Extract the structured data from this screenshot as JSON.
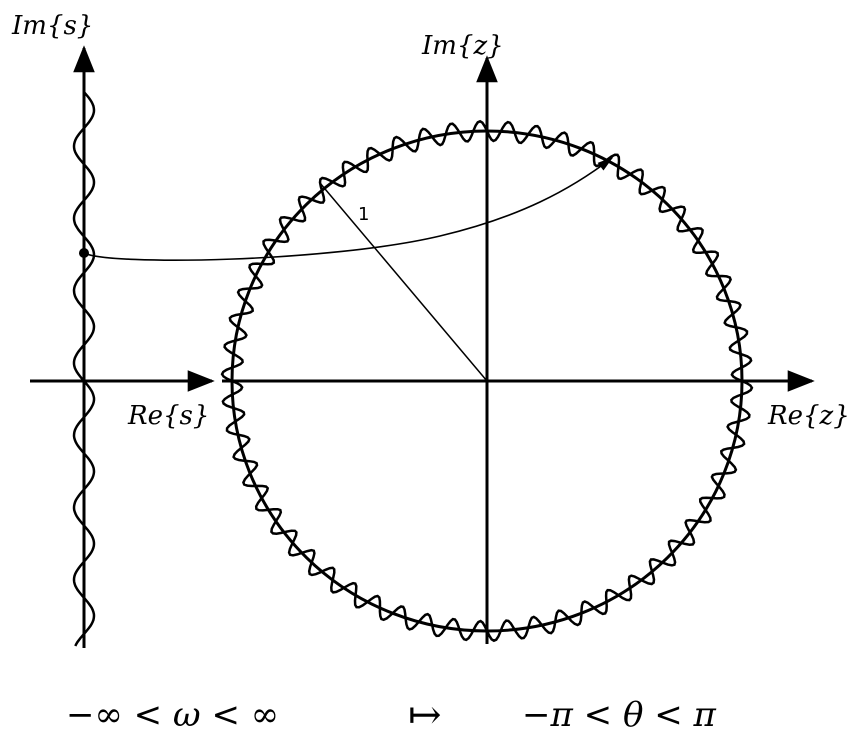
{
  "labels": {
    "im_s": "Im{s}",
    "re_s": "Re{s}",
    "im_z": "Im{z}",
    "re_z": "Re{z}",
    "radius": "1"
  },
  "caption": {
    "left": "−∞ < ω < ∞",
    "arrow": "↦",
    "right": "−π < θ < π"
  },
  "colors": {
    "ink": "#000000",
    "paper": "#ffffff"
  }
}
